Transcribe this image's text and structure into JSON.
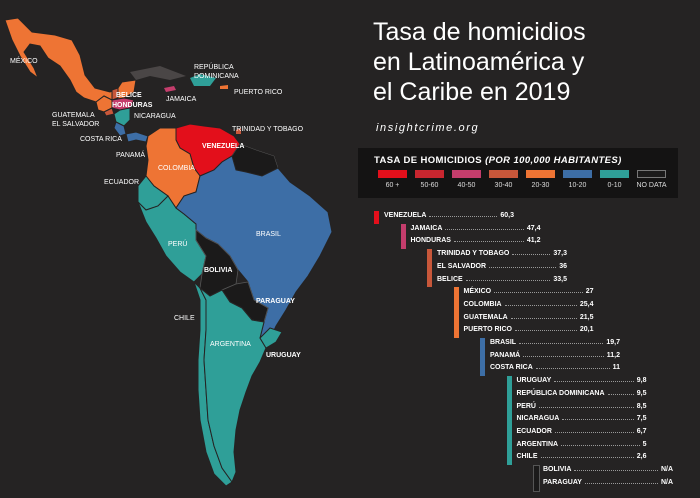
{
  "title_lines": [
    "Tasa de homicidios",
    "en Latinoamérica y",
    "el Caribe en 2019"
  ],
  "source": "insightcrime.org",
  "legend": {
    "title_main": "TASA DE HOMICIDIOS ",
    "title_italic": "(POR 100,000 HABITANTES)",
    "items": [
      {
        "label": "60 +",
        "color": "#e30f1b"
      },
      {
        "label": "50-60",
        "color": "#c8262f"
      },
      {
        "label": "40-50",
        "color": "#c43d6c"
      },
      {
        "label": "30-40",
        "color": "#c8573a"
      },
      {
        "label": "20-30",
        "color": "#ee7434"
      },
      {
        "label": "10-20",
        "color": "#3d6ea6"
      },
      {
        "label": "0-10",
        "color": "#2f9f98"
      },
      {
        "label": "NO DATA",
        "color": "#1b1a1a"
      }
    ]
  },
  "ranking": [
    {
      "country": "VENEZUELA",
      "value": "60,3",
      "color": "#e30f1b"
    },
    {
      "country": "JAMAICA",
      "value": "47,4",
      "color": "#c43d6c"
    },
    {
      "country": "HONDURAS",
      "value": "41,2",
      "color": "#c43d6c"
    },
    {
      "country": "TRINIDAD Y TOBAGO",
      "value": "37,3",
      "color": "#c8573a"
    },
    {
      "country": "EL SALVADOR",
      "value": "36",
      "color": "#c8573a"
    },
    {
      "country": "BELICE",
      "value": "33,5",
      "color": "#c8573a"
    },
    {
      "country": "MÉXICO",
      "value": "27",
      "color": "#ee7434"
    },
    {
      "country": "COLOMBIA",
      "value": "25,4",
      "color": "#ee7434"
    },
    {
      "country": "GUATEMALA",
      "value": "21,5",
      "color": "#ee7434"
    },
    {
      "country": "PUERTO RICO",
      "value": "20,1",
      "color": "#ee7434"
    },
    {
      "country": "BRASIL",
      "value": "19,7",
      "color": "#3d6ea6"
    },
    {
      "country": "PANAMÁ",
      "value": "11,2",
      "color": "#3d6ea6"
    },
    {
      "country": "COSTA RICA",
      "value": "11",
      "color": "#3d6ea6"
    },
    {
      "country": "URUGUAY",
      "value": "9,8",
      "color": "#2f9f98"
    },
    {
      "country": "REPÚBLICA DOMINICANA",
      "value": "9,5",
      "color": "#2f9f98"
    },
    {
      "country": "PERÚ",
      "value": "8,5",
      "color": "#2f9f98"
    },
    {
      "country": "NICARAGUA",
      "value": "7,5",
      "color": "#2f9f98"
    },
    {
      "country": "ECUADOR",
      "value": "6,7",
      "color": "#2f9f98"
    },
    {
      "country": "ARGENTINA",
      "value": "5",
      "color": "#2f9f98"
    },
    {
      "country": "CHILE",
      "value": "2,6",
      "color": "#2f9f98"
    },
    {
      "country": "BOLIVIA",
      "value": "N/A",
      "color": "#1b1a1a"
    },
    {
      "country": "PARAGUAY",
      "value": "N/A",
      "color": "#1b1a1a"
    }
  ],
  "map_labels": {
    "mexico": "MÉXICO",
    "belice": "BELICE",
    "honduras": "HONDURAS",
    "guatemala": "GUATEMALA",
    "el_salvador": "EL SALVADOR",
    "nicaragua": "NICARAGUA",
    "costa_rica": "COSTA RICA",
    "panama": "PANAMÁ",
    "rep_dom_1": "REPÚBLICA",
    "rep_dom_2": "DOMINICANA",
    "jamaica": "JAMAICA",
    "puerto_rico": "PUERTO RICO",
    "trinidad": "TRINIDAD Y TOBAGO",
    "venezuela": "VENEZUELA",
    "colombia": "COLOMBIA",
    "ecuador": "ECUADOR",
    "peru": "PERÚ",
    "brasil": "BRASIL",
    "bolivia": "BOLIVIA",
    "paraguay": "PARAGUAY",
    "chile": "CHILE",
    "argentina": "ARGENTINA",
    "uruguay": "URUGUAY"
  }
}
